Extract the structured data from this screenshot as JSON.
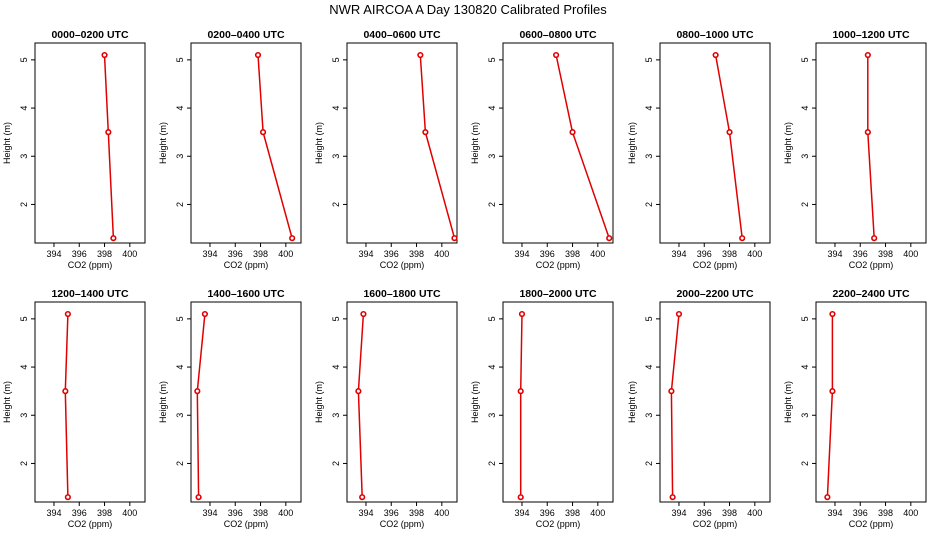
{
  "figure_title": "NWR AIRCOA A  Day 130820  Calibrated Profiles",
  "colors": {
    "line": "#e00000",
    "marker_fill": "#ffffff",
    "axes": "#000000"
  },
  "chart_data": [
    {
      "type": "line",
      "title": "0000–0200 UTC",
      "xlabel": "CO2 (ppm)",
      "ylabel": "Height (m)",
      "xlim": [
        392.5,
        401.2
      ],
      "ylim": [
        1.2,
        5.35
      ],
      "xticks": [
        394,
        396,
        398,
        400
      ],
      "xtick_labels": [
        "394",
        "396",
        "398",
        "400"
      ],
      "yticks": [
        2,
        3,
        4,
        5
      ],
      "ytick_labels": [
        "2",
        "3",
        "4",
        "5"
      ],
      "x": [
        398.7,
        398.3,
        398.0
      ],
      "y": [
        1.3,
        3.5,
        5.1
      ]
    },
    {
      "type": "line",
      "title": "0200–0400 UTC",
      "xlabel": "CO2 (ppm)",
      "ylabel": "Height (m)",
      "xlim": [
        392.5,
        401.2
      ],
      "ylim": [
        1.2,
        5.35
      ],
      "xticks": [
        394,
        396,
        398,
        400
      ],
      "xtick_labels": [
        "394",
        "396",
        "398",
        "400"
      ],
      "yticks": [
        2,
        3,
        4,
        5
      ],
      "ytick_labels": [
        "2",
        "3",
        "4",
        "5"
      ],
      "x": [
        400.5,
        398.2,
        397.8
      ],
      "y": [
        1.3,
        3.5,
        5.1
      ]
    },
    {
      "type": "line",
      "title": "0400–0600 UTC",
      "xlabel": "CO2 (ppm)",
      "ylabel": "Height (m)",
      "xlim": [
        392.5,
        401.2
      ],
      "ylim": [
        1.2,
        5.35
      ],
      "xticks": [
        394,
        396,
        398,
        400
      ],
      "xtick_labels": [
        "394",
        "396",
        "398",
        "400"
      ],
      "yticks": [
        2,
        3,
        4,
        5
      ],
      "ytick_labels": [
        "2",
        "3",
        "4",
        "5"
      ],
      "x": [
        401.0,
        398.7,
        398.3
      ],
      "y": [
        1.3,
        3.5,
        5.1
      ]
    },
    {
      "type": "line",
      "title": "0600–0800 UTC",
      "xlabel": "CO2 (ppm)",
      "ylabel": "Height (m)",
      "xlim": [
        392.5,
        401.2
      ],
      "ylim": [
        1.2,
        5.35
      ],
      "xticks": [
        394,
        396,
        398,
        400
      ],
      "xtick_labels": [
        "394",
        "396",
        "398",
        "400"
      ],
      "yticks": [
        2,
        3,
        4,
        5
      ],
      "ytick_labels": [
        "2",
        "3",
        "4",
        "5"
      ],
      "x": [
        400.9,
        398.0,
        396.7
      ],
      "y": [
        1.3,
        3.5,
        5.1
      ]
    },
    {
      "type": "line",
      "title": "0800–1000 UTC",
      "xlabel": "CO2 (ppm)",
      "ylabel": "Height (m)",
      "xlim": [
        392.5,
        401.2
      ],
      "ylim": [
        1.2,
        5.35
      ],
      "xticks": [
        394,
        396,
        398,
        400
      ],
      "xtick_labels": [
        "394",
        "396",
        "398",
        "400"
      ],
      "yticks": [
        2,
        3,
        4,
        5
      ],
      "ytick_labels": [
        "2",
        "3",
        "4",
        "5"
      ],
      "x": [
        399.0,
        398.0,
        396.9
      ],
      "y": [
        1.3,
        3.5,
        5.1
      ]
    },
    {
      "type": "line",
      "title": "1000–1200 UTC",
      "xlabel": "CO2 (ppm)",
      "ylabel": "Height (m)",
      "xlim": [
        392.5,
        401.2
      ],
      "ylim": [
        1.2,
        5.35
      ],
      "xticks": [
        394,
        396,
        398,
        400
      ],
      "xtick_labels": [
        "394",
        "396",
        "398",
        "400"
      ],
      "yticks": [
        2,
        3,
        4,
        5
      ],
      "ytick_labels": [
        "2",
        "3",
        "4",
        "5"
      ],
      "x": [
        397.1,
        396.6,
        396.6
      ],
      "y": [
        1.3,
        3.5,
        5.1
      ]
    },
    {
      "type": "line",
      "title": "1200–1400 UTC",
      "xlabel": "CO2 (ppm)",
      "ylabel": "Height (m)",
      "xlim": [
        392.5,
        401.2
      ],
      "ylim": [
        1.2,
        5.35
      ],
      "xticks": [
        394,
        396,
        398,
        400
      ],
      "xtick_labels": [
        "394",
        "396",
        "398",
        "400"
      ],
      "yticks": [
        2,
        3,
        4,
        5
      ],
      "ytick_labels": [
        "2",
        "3",
        "4",
        "5"
      ],
      "x": [
        395.1,
        394.9,
        395.1
      ],
      "y": [
        1.3,
        3.5,
        5.1
      ]
    },
    {
      "type": "line",
      "title": "1400–1600 UTC",
      "xlabel": "CO2 (ppm)",
      "ylabel": "Height (m)",
      "xlim": [
        392.5,
        401.2
      ],
      "ylim": [
        1.2,
        5.35
      ],
      "xticks": [
        394,
        396,
        398,
        400
      ],
      "xtick_labels": [
        "394",
        "396",
        "398",
        "400"
      ],
      "yticks": [
        2,
        3,
        4,
        5
      ],
      "ytick_labels": [
        "2",
        "3",
        "4",
        "5"
      ],
      "x": [
        393.1,
        393.0,
        393.6
      ],
      "y": [
        1.3,
        3.5,
        5.1
      ]
    },
    {
      "type": "line",
      "title": "1600–1800 UTC",
      "xlabel": "CO2 (ppm)",
      "ylabel": "Height (m)",
      "xlim": [
        392.5,
        401.2
      ],
      "ylim": [
        1.2,
        5.35
      ],
      "xticks": [
        394,
        396,
        398,
        400
      ],
      "xtick_labels": [
        "394",
        "396",
        "398",
        "400"
      ],
      "yticks": [
        2,
        3,
        4,
        5
      ],
      "ytick_labels": [
        "2",
        "3",
        "4",
        "5"
      ],
      "x": [
        393.7,
        393.4,
        393.8
      ],
      "y": [
        1.3,
        3.5,
        5.1
      ]
    },
    {
      "type": "line",
      "title": "1800–2000 UTC",
      "xlabel": "CO2 (ppm)",
      "ylabel": "Height (m)",
      "xlim": [
        392.5,
        401.2
      ],
      "ylim": [
        1.2,
        5.35
      ],
      "xticks": [
        394,
        396,
        398,
        400
      ],
      "xtick_labels": [
        "394",
        "396",
        "398",
        "400"
      ],
      "yticks": [
        2,
        3,
        4,
        5
      ],
      "ytick_labels": [
        "2",
        "3",
        "4",
        "5"
      ],
      "x": [
        393.9,
        393.9,
        394.0
      ],
      "y": [
        1.3,
        3.5,
        5.1
      ]
    },
    {
      "type": "line",
      "title": "2000–2200 UTC",
      "xlabel": "CO2 (ppm)",
      "ylabel": "Height (m)",
      "xlim": [
        392.5,
        401.2
      ],
      "ylim": [
        1.2,
        5.35
      ],
      "xticks": [
        394,
        396,
        398,
        400
      ],
      "xtick_labels": [
        "394",
        "396",
        "398",
        "400"
      ],
      "yticks": [
        2,
        3,
        4,
        5
      ],
      "ytick_labels": [
        "2",
        "3",
        "4",
        "5"
      ],
      "x": [
        393.5,
        393.4,
        394.0
      ],
      "y": [
        1.3,
        3.5,
        5.1
      ]
    },
    {
      "type": "line",
      "title": "2200–2400 UTC",
      "xlabel": "CO2 (ppm)",
      "ylabel": "Height (m)",
      "xlim": [
        392.5,
        401.2
      ],
      "ylim": [
        1.2,
        5.35
      ],
      "xticks": [
        394,
        396,
        398,
        400
      ],
      "xtick_labels": [
        "394",
        "396",
        "398",
        "400"
      ],
      "yticks": [
        2,
        3,
        4,
        5
      ],
      "ytick_labels": [
        "2",
        "3",
        "4",
        "5"
      ],
      "x": [
        393.4,
        393.8,
        393.8
      ],
      "y": [
        1.3,
        3.5,
        5.1
      ]
    }
  ]
}
